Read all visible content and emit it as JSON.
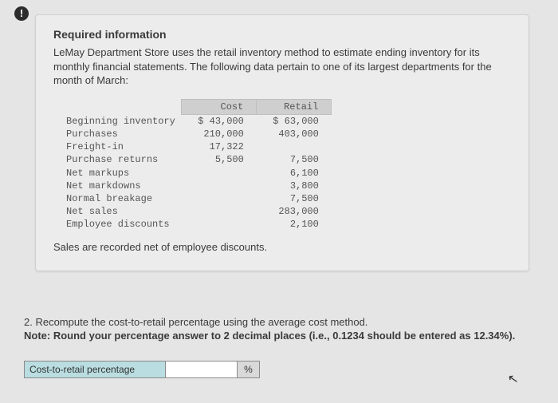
{
  "alert_glyph": "!",
  "card": {
    "title": "Required information",
    "intro": "LeMay Department Store uses the retail inventory method to estimate ending inventory for its monthly financial statements. The following data pertain to one of its largest departments for the month of March:",
    "table": {
      "headers": {
        "cost": "Cost",
        "retail": "Retail"
      },
      "rows": [
        {
          "label": "Beginning inventory",
          "cost": "$ 43,000",
          "retail": "$ 63,000"
        },
        {
          "label": "Purchases",
          "cost": "210,000",
          "retail": "403,000"
        },
        {
          "label": "Freight-in",
          "cost": "17,322",
          "retail": ""
        },
        {
          "label": "Purchase returns",
          "cost": "5,500",
          "retail": "7,500"
        },
        {
          "label": "Net markups",
          "cost": "",
          "retail": "6,100"
        },
        {
          "label": "Net markdowns",
          "cost": "",
          "retail": "3,800"
        },
        {
          "label": "Normal breakage",
          "cost": "",
          "retail": "7,500"
        },
        {
          "label": "Net sales",
          "cost": "",
          "retail": "283,000"
        },
        {
          "label": "Employee discounts",
          "cost": "",
          "retail": "2,100"
        }
      ]
    },
    "sales_note": "Sales are recorded net of employee discounts."
  },
  "question": {
    "text": "2. Recompute the cost-to-retail percentage using the average cost method.",
    "note": "Note: Round your percentage answer to 2 decimal places (i.e., 0.1234 should be entered as 12.34%).",
    "answer_label": "Cost-to-retail percentage",
    "answer_value": "",
    "answer_unit": "%"
  },
  "colors": {
    "page_bg": "#e5e5e5",
    "card_bg": "#ececec",
    "header_cell_bg": "#cfcfcf",
    "answer_label_bg": "#b9dde0",
    "answer_unit_bg": "#d9d9d9"
  }
}
